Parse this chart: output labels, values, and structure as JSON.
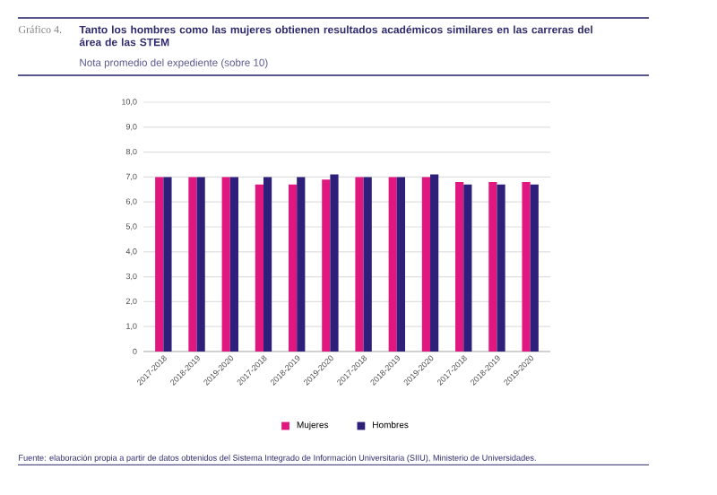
{
  "chart_data": {
    "type": "bar",
    "title": "Tanto los hombres como las mujeres obtienen resultados académicos similares en las carreras del área de las STEM",
    "subtitle": "Nota promedio del expediente (sobre 10)",
    "annotations": [
      "Gráfico 4.",
      "Fuente: elaboración propia a partir de datos obtenidos del Sistema Integrado de Información Universitaria (SIIU), Ministerio de Universidades."
    ],
    "categories": [
      "2017-2018",
      "2018-2019",
      "2019-2020",
      "2017-2018",
      "2018-2019",
      "2019-2020",
      "2017-2018",
      "2018-2019",
      "2019-2020",
      "2017-2018",
      "2018-2019",
      "2019-2020"
    ],
    "series": [
      {
        "name": "Mujeres",
        "color": "#e0177f",
        "values": [
          7.0,
          7.0,
          7.0,
          6.7,
          6.7,
          6.9,
          7.0,
          7.0,
          7.0,
          6.8,
          6.8,
          6.8
        ]
      },
      {
        "name": "Hombres",
        "color": "#2e1f7a",
        "values": [
          7.0,
          7.0,
          7.0,
          7.0,
          7.0,
          7.1,
          7.0,
          7.0,
          7.1,
          6.7,
          6.7,
          6.7
        ]
      }
    ],
    "ylim": [
      0,
      10
    ],
    "yticks": [
      0,
      {
        "value": 1,
        "label": "1,0"
      },
      {
        "value": 2,
        "label": "2,0"
      },
      {
        "value": 3,
        "label": "3,0"
      },
      {
        "value": 4,
        "label": "4,0"
      },
      {
        "value": 5,
        "label": "5,0"
      },
      {
        "value": 6,
        "label": "6,0"
      },
      {
        "value": 7,
        "label": "7,0"
      },
      {
        "value": 8,
        "label": "8,0"
      },
      {
        "value": 9,
        "label": "9,0"
      },
      {
        "value": 10,
        "label": "10,0"
      }
    ],
    "grid": "y",
    "legend": "bottom"
  }
}
